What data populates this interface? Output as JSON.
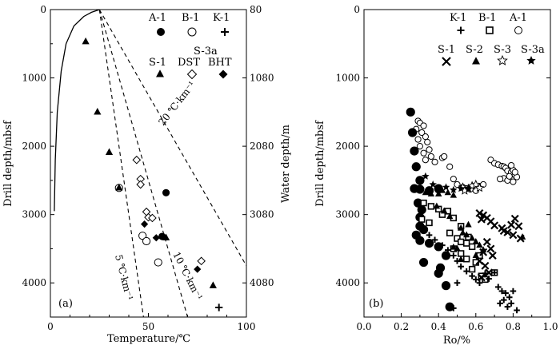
{
  "chart_data": [
    {
      "type": "scatter",
      "panel_label": "(a)",
      "xlabel": "Temperature/℃",
      "ylabel": "Drill depth/mbsf",
      "y2label": "Water depth/m",
      "xlim": [
        0,
        100
      ],
      "ylim": [
        0,
        4500
      ],
      "y2lim": [
        80,
        4580
      ],
      "xticks": [
        0,
        50,
        100
      ],
      "yticks": [
        0,
        1000,
        2000,
        3000,
        4000
      ],
      "y2ticks": [
        80,
        1080,
        2080,
        3080,
        4080
      ],
      "legend": [
        {
          "label": "A-1",
          "marker": "filled-circle"
        },
        {
          "label": "B-1",
          "marker": "open-circle"
        },
        {
          "label": "K-1",
          "marker": "plus"
        },
        {
          "label": "S-1",
          "marker": "filled-triangle"
        },
        {
          "label": "S-3a",
          "marker": "none"
        },
        {
          "label": "DST",
          "marker": "open-diamond"
        },
        {
          "label": "BHT",
          "marker": "filled-diamond"
        }
      ],
      "gradient_lines": [
        {
          "label": "20 ℃·km⁻¹",
          "x": [
            25,
            100
          ],
          "y": [
            0,
            3750
          ]
        },
        {
          "label": "10 ℃·km⁻¹",
          "x": [
            25,
            70
          ],
          "y": [
            0,
            4500
          ]
        },
        {
          "label": "5 ℃·km⁻¹",
          "x": [
            25,
            47.5
          ],
          "y": [
            0,
            4500
          ]
        }
      ],
      "series": [
        {
          "name": "A-1",
          "marker": "filled-circle",
          "points": [
            [
              59,
              2680
            ],
            [
              57,
              3320
            ]
          ]
        },
        {
          "name": "B-1",
          "marker": "open-circle",
          "points": [
            [
              35,
              2610
            ],
            [
              47,
              3310
            ],
            [
              49,
              3390
            ],
            [
              55,
              3700
            ]
          ]
        },
        {
          "name": "K-1",
          "marker": "plus",
          "points": [
            [
              86,
              4360
            ]
          ]
        },
        {
          "name": "S-1",
          "marker": "filled-triangle",
          "points": [
            [
              18,
              470
            ],
            [
              24,
              1500
            ],
            [
              30,
              2090
            ],
            [
              35,
              2610
            ],
            [
              59,
              3340
            ],
            [
              83,
              4040
            ]
          ]
        },
        {
          "name": "DST",
          "marker": "open-diamond",
          "points": [
            [
              44,
              2200
            ],
            [
              46,
              2480
            ],
            [
              46,
              2560
            ],
            [
              49,
              2960
            ],
            [
              50,
              3040
            ],
            [
              52,
              3050
            ],
            [
              77,
              3680
            ]
          ]
        },
        {
          "name": "BHT",
          "marker": "filled-diamond",
          "points": [
            [
              48,
              3140
            ],
            [
              54,
              3340
            ],
            [
              75,
              3800
            ]
          ]
        }
      ],
      "curve": {
        "x": [
          2,
          2.5,
          3.5,
          5.5,
          8,
          12,
          17,
          21,
          24,
          25
        ],
        "y": [
          2950,
          2200,
          1500,
          900,
          500,
          240,
          100,
          40,
          10,
          0
        ]
      }
    },
    {
      "type": "scatter",
      "panel_label": "(b)",
      "xlabel": "Ro/%",
      "ylabel": "Drill depth/mbsf",
      "xlim": [
        0,
        1.0
      ],
      "ylim": [
        0,
        4500
      ],
      "xticks": [
        0.0,
        0.2,
        0.4,
        0.6,
        0.8,
        1.0
      ],
      "xtick_labels": [
        "0.0",
        "0.2",
        "0.4",
        "0.6",
        "0.8",
        "1.0"
      ],
      "yticks": [
        0,
        1000,
        2000,
        3000,
        4000
      ],
      "legend": [
        {
          "label": "K-1",
          "marker": "plus"
        },
        {
          "label": "B-1",
          "marker": "open-square"
        },
        {
          "label": "A-1",
          "marker": "open-circle"
        },
        {
          "label": "S-1",
          "marker": "cross"
        },
        {
          "label": "S-2",
          "marker": "filled-triangle"
        },
        {
          "label": "S-3",
          "marker": "open-star"
        },
        {
          "label": "S-3a",
          "marker": "filled-star"
        }
      ],
      "series": [
        {
          "name": "A-1",
          "marker": "open-circle",
          "points": [
            [
              0.29,
              1630
            ],
            [
              0.3,
              1660
            ],
            [
              0.32,
              1700
            ],
            [
              0.28,
              1750
            ],
            [
              0.31,
              1800
            ],
            [
              0.33,
              1860
            ],
            [
              0.29,
              1900
            ],
            [
              0.34,
              1940
            ],
            [
              0.3,
              2000
            ],
            [
              0.35,
              2050
            ],
            [
              0.32,
              2100
            ],
            [
              0.36,
              2150
            ],
            [
              0.33,
              2200
            ],
            [
              0.38,
              2230
            ],
            [
              0.42,
              2170
            ],
            [
              0.43,
              2150
            ],
            [
              0.46,
              2300
            ],
            [
              0.48,
              2480
            ],
            [
              0.5,
              2560
            ],
            [
              0.53,
              2600
            ],
            [
              0.55,
              2620
            ],
            [
              0.57,
              2630
            ],
            [
              0.6,
              2650
            ],
            [
              0.64,
              2560
            ],
            [
              0.68,
              2200
            ],
            [
              0.7,
              2250
            ],
            [
              0.72,
              2270
            ],
            [
              0.74,
              2290
            ],
            [
              0.75,
              2300
            ],
            [
              0.76,
              2320
            ],
            [
              0.77,
              2360
            ],
            [
              0.79,
              2380
            ],
            [
              0.8,
              2350
            ],
            [
              0.81,
              2420
            ],
            [
              0.75,
              2470
            ],
            [
              0.77,
              2500
            ],
            [
              0.8,
              2520
            ],
            [
              0.82,
              2450
            ],
            [
              0.73,
              2480
            ],
            [
              0.78,
              2440
            ],
            [
              0.81,
              2380
            ],
            [
              0.79,
              2280
            ]
          ]
        },
        {
          "name": "A-1 (large)",
          "marker": "filled-circle",
          "points": [
            [
              0.25,
              1500
            ],
            [
              0.26,
              1800
            ],
            [
              0.27,
              2070
            ],
            [
              0.28,
              2300
            ],
            [
              0.3,
              2500
            ],
            [
              0.27,
              2620
            ],
            [
              0.3,
              2630
            ],
            [
              0.35,
              2650
            ],
            [
              0.4,
              2620
            ],
            [
              0.29,
              2830
            ],
            [
              0.31,
              2930
            ],
            [
              0.3,
              3040
            ],
            [
              0.3,
              3170
            ],
            [
              0.32,
              3220
            ],
            [
              0.28,
              3300
            ],
            [
              0.3,
              3380
            ],
            [
              0.35,
              3420
            ],
            [
              0.4,
              3470
            ],
            [
              0.44,
              3600
            ],
            [
              0.32,
              3700
            ],
            [
              0.41,
              3780
            ],
            [
              0.4,
              3860
            ],
            [
              0.44,
              4040
            ],
            [
              0.46,
              4350
            ]
          ]
        },
        {
          "name": "B-1",
          "marker": "open-square",
          "points": [
            [
              0.32,
              2830
            ],
            [
              0.36,
              2880
            ],
            [
              0.4,
              2920
            ],
            [
              0.45,
              2950
            ],
            [
              0.31,
              3070
            ],
            [
              0.35,
              3120
            ],
            [
              0.42,
              3000
            ],
            [
              0.48,
              3050
            ],
            [
              0.52,
              3170
            ],
            [
              0.46,
              3270
            ],
            [
              0.5,
              3350
            ],
            [
              0.55,
              3420
            ],
            [
              0.58,
              3470
            ],
            [
              0.52,
              3570
            ],
            [
              0.55,
              3650
            ],
            [
              0.6,
              3700
            ],
            [
              0.62,
              3600
            ],
            [
              0.58,
              3800
            ],
            [
              0.63,
              3900
            ],
            [
              0.65,
              3950
            ],
            [
              0.7,
              3850
            ],
            [
              0.52,
              3400
            ],
            [
              0.48,
              3500
            ],
            [
              0.56,
              3330
            ]
          ]
        },
        {
          "name": "K-1",
          "marker": "plus",
          "points": [
            [
              0.35,
              3300
            ],
            [
              0.38,
              3370
            ],
            [
              0.42,
              3450
            ],
            [
              0.45,
              3520
            ],
            [
              0.48,
              3600
            ],
            [
              0.5,
              3680
            ],
            [
              0.52,
              3760
            ],
            [
              0.55,
              3830
            ],
            [
              0.58,
              3900
            ],
            [
              0.6,
              3950
            ],
            [
              0.62,
              4000
            ],
            [
              0.65,
              3860
            ],
            [
              0.7,
              3850
            ],
            [
              0.72,
              4060
            ],
            [
              0.74,
              4120
            ],
            [
              0.76,
              4150
            ],
            [
              0.78,
              4210
            ],
            [
              0.79,
              4300
            ],
            [
              0.75,
              4250
            ],
            [
              0.8,
              4120
            ],
            [
              0.82,
              4400
            ],
            [
              0.77,
              4350
            ],
            [
              0.5,
              4000
            ],
            [
              0.48,
              4370
            ],
            [
              0.73,
              4300
            ],
            [
              0.67,
              3940
            ]
          ]
        },
        {
          "name": "S-1",
          "marker": "cross",
          "points": [
            [
              0.62,
              2980
            ],
            [
              0.64,
              3010
            ],
            [
              0.66,
              3050
            ],
            [
              0.68,
              3100
            ],
            [
              0.63,
              3070
            ],
            [
              0.7,
              3160
            ],
            [
              0.74,
              3200
            ],
            [
              0.77,
              3260
            ],
            [
              0.79,
              3150
            ],
            [
              0.81,
              3060
            ],
            [
              0.8,
              3300
            ],
            [
              0.84,
              3350
            ],
            [
              0.83,
              3170
            ],
            [
              0.66,
              3400
            ],
            [
              0.68,
              3500
            ],
            [
              0.64,
              3550
            ],
            [
              0.62,
              3680
            ],
            [
              0.65,
              3750
            ],
            [
              0.67,
              3850
            ],
            [
              0.63,
              3920
            ],
            [
              0.69,
              3600
            ],
            [
              0.75,
              3240
            ]
          ]
        },
        {
          "name": "S-2",
          "marker": "filled-triangle",
          "points": [
            [
              0.33,
              2680
            ],
            [
              0.36,
              2700
            ],
            [
              0.4,
              2700
            ],
            [
              0.42,
              2650
            ],
            [
              0.45,
              2680
            ],
            [
              0.48,
              2720
            ],
            [
              0.39,
              2880
            ],
            [
              0.43,
              2950
            ],
            [
              0.46,
              3030
            ],
            [
              0.52,
              3200
            ],
            [
              0.53,
              3270
            ],
            [
              0.55,
              3300
            ],
            [
              0.58,
              3350
            ],
            [
              0.6,
              3400
            ],
            [
              0.62,
              3450
            ],
            [
              0.64,
              3520
            ],
            [
              0.48,
              3480
            ],
            [
              0.5,
              3500
            ],
            [
              0.85,
              3330
            ],
            [
              0.56,
              3150
            ],
            [
              0.6,
              3600
            ],
            [
              0.52,
              3660
            ]
          ]
        },
        {
          "name": "S-3",
          "marker": "open-star",
          "points": [
            [
              0.53,
              2600
            ],
            [
              0.56,
              2620
            ],
            [
              0.58,
              2580
            ],
            [
              0.6,
              2560
            ],
            [
              0.62,
              2610
            ],
            [
              0.54,
              2650
            ]
          ]
        },
        {
          "name": "S-3a",
          "marker": "filled-star",
          "points": [
            [
              0.33,
              2440
            ],
            [
              0.37,
              2560
            ],
            [
              0.4,
              2680
            ],
            [
              0.44,
              2600
            ],
            [
              0.48,
              2640
            ],
            [
              0.52,
              2620
            ],
            [
              0.56,
              2620
            ]
          ]
        }
      ]
    }
  ]
}
